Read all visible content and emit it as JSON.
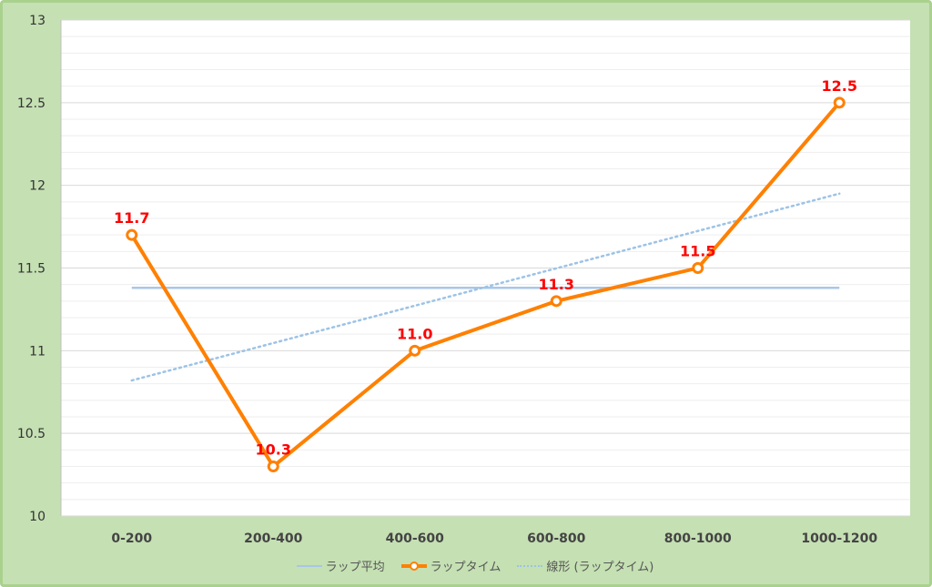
{
  "chart_data": {
    "type": "line",
    "categories": [
      "0-200",
      "200-400",
      "400-600",
      "600-800",
      "800-1000",
      "1000-1200"
    ],
    "ylim": [
      10,
      13
    ],
    "yticks": [
      10,
      10.5,
      11,
      11.5,
      12,
      12.5,
      13
    ],
    "ytick_labels": [
      "10",
      "10.5",
      "11",
      "11.5",
      "12",
      "12.5",
      "13"
    ],
    "series": [
      {
        "name": "ラップ平均",
        "values": [
          11.38,
          11.38,
          11.38,
          11.38,
          11.38,
          11.38
        ],
        "color": "#a9c6e8",
        "style": "solid-thin"
      },
      {
        "name": "ラップタイム",
        "values": [
          11.7,
          10.3,
          11.0,
          11.3,
          11.5,
          12.5
        ],
        "data_labels": [
          "11.7",
          "10.3",
          "11.0",
          "11.3",
          "11.5",
          "12.5"
        ],
        "color": "#ff8000",
        "style": "solid-markers"
      },
      {
        "name": "線形 (ラップタイム)",
        "trend_start": 10.82,
        "trend_end": 11.95,
        "color": "#9dc3e6",
        "style": "dotted"
      }
    ],
    "grid": "horizontal-major-minor",
    "legend_position": "bottom",
    "label_color": "#ff0000",
    "background": "#ffffff",
    "frame_color": "#c5e0b3"
  }
}
